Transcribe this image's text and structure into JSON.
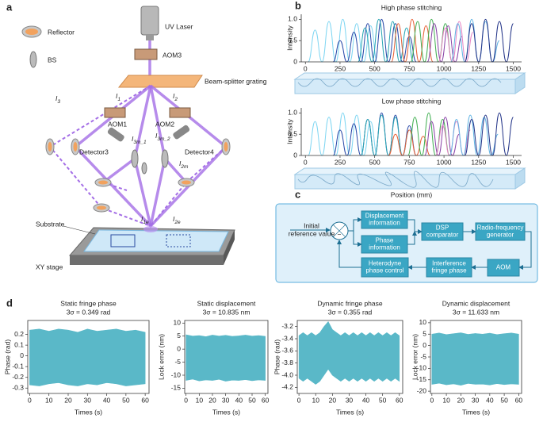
{
  "panel_a": {
    "letter": "a",
    "reflector": "Reflector",
    "bs": "BS",
    "laser": "UV Laser",
    "aom3": "AOM3",
    "grating": "Beam-splitter grating",
    "aom1": "AOM1",
    "aom2": "AOM2",
    "detector3": "Detector3",
    "detector4": "Detector4",
    "substrate": "Substrate",
    "stage": "XY stage",
    "beams": [
      {
        "main": "I",
        "sub": "3"
      },
      {
        "main": "I",
        "sub": "1"
      },
      {
        "main": "I",
        "sub": "2"
      },
      {
        "main": "I",
        "sub": "3m_1"
      },
      {
        "main": "I",
        "sub": "3m_2"
      },
      {
        "main": "I",
        "sub": "2m"
      },
      {
        "main": "I",
        "sub": "1e"
      },
      {
        "main": "I",
        "sub": "2e"
      }
    ]
  },
  "panel_b": {
    "letter": "b"
  },
  "panel_c": {
    "letter": "c",
    "input": [
      "Initial",
      "reference value"
    ],
    "minus": "−",
    "boxes": [
      [
        "Displacement",
        "information"
      ],
      [
        "Phase",
        "information"
      ],
      [
        "DSP",
        "comparator"
      ],
      [
        "Radio-frequency",
        "generator"
      ],
      [
        "AOM"
      ],
      [
        "Interference",
        "fringe phase"
      ],
      [
        "Heterodyne",
        "phase control"
      ]
    ]
  },
  "panel_d": {
    "letter": "d"
  },
  "chart_data": [
    {
      "type": "line",
      "title": "High phase stitching",
      "ylabel": "Intensity",
      "xlim": [
        -30,
        1560
      ],
      "xticks": [
        0,
        250,
        500,
        750,
        1000,
        1250,
        1500
      ],
      "ylim": [
        0,
        1.12
      ],
      "yticks": [
        0,
        0.5,
        {
          "value": 1,
          "label": "1.0"
        }
      ],
      "series": [
        {
          "color": "#7fd6f2",
          "x": [
            20,
            70,
            120,
            170,
            220,
            270,
            320,
            370,
            420,
            470,
            520
          ],
          "values": [
            0,
            0.75,
            0,
            0.95,
            0,
            1.0,
            0,
            0.9,
            0,
            0.85,
            0
          ]
        },
        {
          "color": "#2a49a8",
          "x": [
            200,
            250,
            300,
            350,
            400,
            450,
            500,
            550,
            600,
            650,
            700,
            750,
            800
          ],
          "values": [
            0,
            0.5,
            0,
            0.7,
            0,
            0.9,
            0,
            1.0,
            0,
            0.9,
            0,
            0.6,
            0
          ]
        },
        {
          "color": "#2aa6b4",
          "x": [
            380,
            430,
            480,
            530,
            580,
            630,
            680,
            730,
            780
          ],
          "values": [
            0,
            0.8,
            0,
            1.0,
            0,
            0.95,
            0,
            0.8,
            0
          ]
        },
        {
          "color": "#e8643a",
          "x": [
            620,
            670,
            720,
            770,
            820,
            870,
            920
          ],
          "values": [
            0,
            0.9,
            0,
            1.0,
            0,
            0.85,
            0
          ]
        },
        {
          "color": "#44b054",
          "x": [
            760,
            810,
            860,
            910,
            960,
            1010,
            1060
          ],
          "values": [
            0,
            0.95,
            0,
            1.0,
            0,
            0.9,
            0
          ]
        },
        {
          "color": "#8a44a8",
          "x": [
            880,
            930,
            980,
            1030,
            1080,
            1130
          ],
          "values": [
            0,
            0.9,
            0,
            0.85,
            0,
            0.6
          ]
        },
        {
          "color": "#e684c4",
          "x": [
            960,
            1010,
            1060,
            1110,
            1160,
            1210
          ],
          "values": [
            0,
            0.8,
            0,
            0.95,
            0,
            0.7
          ]
        },
        {
          "color": "#62b4e4",
          "x": [
            1050,
            1100,
            1150,
            1200,
            1250,
            1300,
            1350,
            1400
          ],
          "values": [
            0,
            0.9,
            0,
            1.0,
            0,
            0.95,
            0,
            0.5
          ]
        },
        {
          "color": "#233488",
          "x": [
            1150,
            1200,
            1250,
            1300,
            1350,
            1400,
            1450,
            1500
          ],
          "values": [
            0,
            0.9,
            0,
            1.0,
            0,
            0.95,
            0,
            0.9
          ]
        }
      ]
    },
    {
      "type": "line",
      "title": "Low phase stitching",
      "ylabel": "Intensity",
      "xlabel": "Position (mm)",
      "xlim": [
        -30,
        1560
      ],
      "xticks": [
        0,
        250,
        500,
        750,
        1000,
        1250,
        1500
      ],
      "ylim": [
        0,
        1.12
      ],
      "yticks": [
        0,
        0.5,
        {
          "value": 1,
          "label": "1.0"
        }
      ],
      "series": [
        {
          "color": "#7fd6f2",
          "x": [
            20,
            70,
            120,
            170,
            220,
            270,
            320,
            370,
            420,
            470,
            520
          ],
          "values": [
            0,
            0.8,
            0,
            0.9,
            0,
            1.0,
            0,
            0.95,
            0,
            0.8,
            0
          ]
        },
        {
          "color": "#2a49a8",
          "x": [
            200,
            250,
            300,
            350,
            400,
            450,
            500,
            550,
            600,
            650,
            700,
            750,
            800
          ],
          "values": [
            0,
            0.6,
            0,
            0.75,
            0,
            0.85,
            0,
            1.0,
            0,
            0.95,
            0,
            0.7,
            0
          ]
        },
        {
          "color": "#2aa6b4",
          "x": [
            400,
            450,
            500,
            550,
            600,
            650,
            700,
            750
          ],
          "values": [
            0,
            0.85,
            0,
            0.95,
            0,
            0.9,
            0,
            0.6
          ]
        },
        {
          "color": "#e8643a",
          "x": [
            600,
            650,
            700,
            750,
            800,
            850,
            900
          ],
          "values": [
            0,
            0.5,
            0,
            0.6,
            0,
            0.45,
            0
          ]
        },
        {
          "color": "#44b054",
          "x": [
            740,
            790,
            840,
            890,
            940,
            990,
            1040
          ],
          "values": [
            0,
            0.9,
            0,
            1.0,
            0,
            0.85,
            0
          ]
        },
        {
          "color": "#8a44a8",
          "x": [
            860,
            910,
            960,
            1010,
            1060,
            1110
          ],
          "values": [
            0,
            0.8,
            0,
            0.9,
            0,
            0.5
          ]
        },
        {
          "color": "#e684c4",
          "x": [
            940,
            990,
            1040,
            1090,
            1140,
            1190
          ],
          "values": [
            0,
            0.7,
            0,
            0.8,
            0,
            0.6
          ]
        },
        {
          "color": "#62b4e4",
          "x": [
            1040,
            1090,
            1140,
            1190,
            1240,
            1290,
            1340,
            1390
          ],
          "values": [
            0,
            0.85,
            0,
            0.95,
            0,
            0.9,
            0,
            0.5
          ]
        },
        {
          "color": "#233488",
          "x": [
            1150,
            1200,
            1250,
            1300,
            1350,
            1400,
            1450,
            1500
          ],
          "values": [
            0,
            0.85,
            0,
            0.95,
            0,
            1.0,
            0,
            0.9
          ]
        }
      ]
    },
    {
      "type": "area",
      "title": "Static fringe phase",
      "subtitle": "3σ = 0.349 rad",
      "ylabel": "Phase (rad)",
      "xlabel": "Times (s)",
      "color": "#5ab8c8",
      "xlim": [
        -1,
        62
      ],
      "xticks": [
        0,
        10,
        20,
        30,
        40,
        50,
        60
      ],
      "ylim": [
        -0.35,
        0.33
      ],
      "yticks": [
        -0.3,
        -0.2,
        -0.1,
        0,
        0.1,
        0.2
      ],
      "x": [
        0,
        5,
        10,
        15,
        20,
        25,
        30,
        35,
        40,
        45,
        50,
        55,
        60
      ],
      "high": [
        0.24,
        0.25,
        0.23,
        0.25,
        0.24,
        0.22,
        0.25,
        0.23,
        0.24,
        0.25,
        0.23,
        0.24,
        0.22
      ],
      "low": [
        -0.27,
        -0.28,
        -0.26,
        -0.25,
        -0.27,
        -0.28,
        -0.26,
        -0.27,
        -0.25,
        -0.26,
        -0.28,
        -0.27,
        -0.26
      ]
    },
    {
      "type": "area",
      "title": "Static displacement",
      "subtitle": "3σ = 10.835 nm",
      "ylabel": "Lock error (nm)",
      "xlabel": "Times (s)",
      "color": "#5ab8c8",
      "xlim": [
        -1,
        62
      ],
      "xticks": [
        0,
        10,
        20,
        30,
        40,
        50,
        60
      ],
      "ylim": [
        -17,
        11
      ],
      "yticks": [
        -15,
        -10,
        -5,
        0,
        5,
        10
      ],
      "x": [
        0,
        5,
        10,
        15,
        20,
        25,
        30,
        35,
        40,
        45,
        50,
        55,
        60
      ],
      "high": [
        5.5,
        5,
        5.2,
        4.8,
        5.4,
        5,
        5.3,
        4.9,
        5.1,
        5.4,
        5,
        5.2,
        4.9
      ],
      "low": [
        -12,
        -11.5,
        -12.2,
        -11.8,
        -12,
        -11.6,
        -12.3,
        -11.9,
        -12,
        -11.7,
        -12.1,
        -11.8,
        -12
      ]
    },
    {
      "type": "area",
      "title": "Dynamic fringe phase",
      "subtitle": "3σ = 0.355 rad",
      "ylabel": "Phase (rad)",
      "xlabel": "Times (s)",
      "color": "#5ab8c8",
      "xlim": [
        -1,
        62
      ],
      "xticks": [
        0,
        10,
        20,
        30,
        40,
        50,
        60
      ],
      "ylim": [
        -4.3,
        -3.1
      ],
      "yticks": [
        -4.2,
        {
          "value": -4,
          "label": "-4.0"
        },
        -3.8,
        -3.6,
        -3.4,
        -3.2
      ],
      "x": [
        0,
        2.5,
        5,
        7.5,
        10,
        12.5,
        15,
        17.5,
        20,
        22.5,
        25,
        27.5,
        30,
        32.5,
        35,
        37.5,
        40,
        42.5,
        45,
        47.5,
        50,
        52.5,
        55,
        57.5,
        60
      ],
      "high": [
        -3.35,
        -3.3,
        -3.35,
        -3.3,
        -3.35,
        -3.3,
        -3.2,
        -3.12,
        -3.25,
        -3.3,
        -3.35,
        -3.3,
        -3.35,
        -3.3,
        -3.35,
        -3.3,
        -3.35,
        -3.3,
        -3.35,
        -3.3,
        -3.35,
        -3.3,
        -3.35,
        -3.3,
        -3.35
      ],
      "low": [
        -4.05,
        -4.1,
        -4.05,
        -4.1,
        -4.15,
        -4.1,
        -4.0,
        -3.9,
        -4.0,
        -4.05,
        -4.1,
        -4.05,
        -4.1,
        -4.05,
        -4.1,
        -4.05,
        -4.1,
        -4.05,
        -4.1,
        -4.05,
        -4.1,
        -4.05,
        -4.1,
        -4.05,
        -4.1
      ]
    },
    {
      "type": "area",
      "title": "Dynamic displacement",
      "subtitle": "3σ = 11.633 nm",
      "ylabel": "Lock error (nm)",
      "xlabel": "Times (s)",
      "color": "#5ab8c8",
      "xlim": [
        -1,
        62
      ],
      "xticks": [
        0,
        10,
        20,
        30,
        40,
        50,
        60
      ],
      "ylim": [
        -21,
        11
      ],
      "yticks": [
        -20,
        -15,
        -10,
        -5,
        0,
        5,
        10
      ],
      "x": [
        0,
        5,
        10,
        15,
        20,
        25,
        30,
        35,
        40,
        45,
        50,
        55,
        60
      ],
      "high": [
        5,
        5.5,
        4.8,
        5.2,
        5.6,
        4.9,
        5.3,
        5,
        5.4,
        4.8,
        5.2,
        5.5,
        5
      ],
      "low": [
        -17,
        -16.5,
        -17.2,
        -16.8,
        -17.4,
        -16.6,
        -17,
        -16.9,
        -17.3,
        -16.7,
        -17.1,
        -16.8,
        -17
      ]
    }
  ]
}
